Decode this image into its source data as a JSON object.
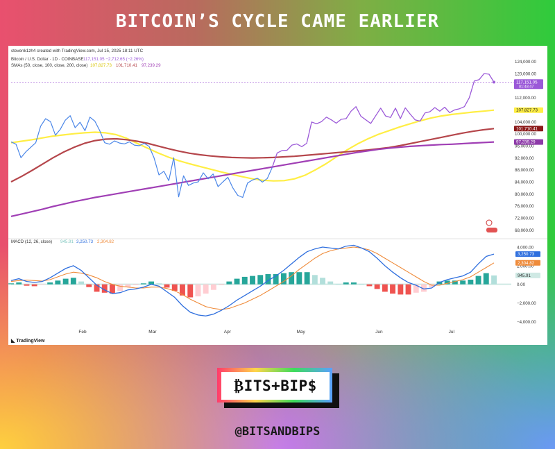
{
  "header": {
    "title": "BITCOIN’S CYCLE CAME EARLIER"
  },
  "brand": {
    "logo_text": "₿ITS+BIP$",
    "handle": "@BITSANDBIPS"
  },
  "chart_data": {
    "type": "line",
    "watermark": "stevenk1zh4 created with TradingView.com, Jul 15, 2025 18:11 UTC",
    "footer": "TradingView",
    "price_pane": {
      "legend_line1": "Bitcoin / U.S. Dollar · 1D · COINBASE",
      "legend_values1": "117,151.05  −2,712.65 (−2.26%)",
      "legend_line2": "SMAs (50, close, 100, close, 200, close)",
      "legend_values2_a": "107,827.73",
      "legend_values2_b": "101,710.41",
      "legend_values2_c": "97,239.29",
      "ylim": [
        66000,
        126000
      ],
      "yticks": [
        "124,000.00",
        "120,000.00",
        "112,000.00",
        "108,000.00",
        "104,000.00",
        "100,000.00",
        "96,000.00",
        "92,000.00",
        "88,000.00",
        "84,000.00",
        "80,000.00",
        "76,000.00",
        "72,000.00",
        "68,000.00"
      ],
      "ytick_values": [
        124000,
        120000,
        112000,
        108000,
        104000,
        100000,
        96000,
        92000,
        88000,
        84000,
        80000,
        76000,
        72000,
        68000
      ],
      "last_price_dashed": 117151.05,
      "series": [
        {
          "name": "Bitcoin / U.S. Dollar",
          "color": "#9b59d8",
          "color_early": "#4a86e8",
          "x": [
            0,
            2,
            4,
            6,
            8,
            10,
            12,
            14,
            16,
            18,
            20,
            22,
            24,
            26,
            28,
            30,
            32,
            34,
            36,
            38,
            40,
            42,
            44,
            46,
            48,
            50,
            52,
            54,
            56,
            58,
            60,
            62,
            64,
            66,
            68,
            70,
            72,
            74,
            76,
            78,
            80,
            82,
            84,
            86,
            88,
            90,
            92,
            94,
            96,
            98,
            100,
            102,
            104,
            106,
            108,
            110,
            112,
            114,
            116,
            118,
            120,
            122,
            124,
            126,
            128,
            130,
            132,
            134,
            136,
            138,
            140,
            142,
            144,
            146,
            148,
            150,
            152,
            154,
            156,
            158,
            160,
            162,
            164,
            166,
            168,
            170,
            172,
            174,
            176,
            178,
            180,
            182,
            184,
            186,
            188,
            190,
            192,
            194,
            196
          ],
          "y": [
            97300,
            96500,
            92000,
            94000,
            95500,
            97000,
            102500,
            105000,
            104000,
            99500,
            101500,
            104500,
            106000,
            102000,
            103800,
            101000,
            105500,
            104200,
            101000,
            97000,
            96500,
            97600,
            96900,
            96600,
            97300,
            96200,
            96000,
            96800,
            95800,
            92000,
            86300,
            87500,
            84400,
            92000,
            79000,
            86000,
            82800,
            83600,
            84000,
            87000,
            85000,
            86600,
            82400,
            84000,
            85500,
            82000,
            79500,
            78800,
            83600,
            84600,
            85200,
            83900,
            85100,
            88800,
            93600,
            94400,
            94500,
            96200,
            96600,
            95700,
            96800,
            103900,
            103300,
            104000,
            105500,
            104600,
            103500,
            104800,
            105000,
            107500,
            109000,
            105800,
            104600,
            103400,
            106000,
            108500,
            105900,
            105400,
            108500,
            105000,
            108600,
            106500,
            104600,
            104200,
            106900,
            107300,
            108700,
            107500,
            108800,
            107000,
            107900,
            108300,
            109000,
            112000,
            117500,
            118000,
            120000,
            119800,
            117150
          ]
        }
      ],
      "smas": [
        {
          "name": "SMA 50",
          "color": "#ffee44",
          "value": 107827.73,
          "y": [
            97000,
            97500,
            98000,
            98600,
            99200,
            99600,
            100000,
            100300,
            100500,
            100300,
            99700,
            98500,
            96800,
            95200,
            93600,
            92200,
            91000,
            90000,
            89100,
            88200,
            87300,
            86500,
            85700,
            85000,
            84500,
            84300,
            84400,
            85000,
            86200,
            88000,
            90000,
            92300,
            94600,
            96600,
            98300,
            99800,
            101000,
            102200,
            103300,
            104300,
            105200,
            105900,
            106400,
            106800,
            107200,
            107500,
            107830
          ]
        },
        {
          "name": "SMA 100",
          "color": "#b5464b",
          "value": 101710.41,
          "y": [
            84000,
            85800,
            87800,
            89900,
            92000,
            93900,
            95500,
            96800,
            97700,
            98200,
            98300,
            98000,
            97500,
            96800,
            95900,
            95000,
            94200,
            93500,
            93000,
            92600,
            92300,
            92100,
            92000,
            91950,
            92000,
            92100,
            92300,
            92500,
            92800,
            93100,
            93400,
            93700,
            94000,
            94300,
            94600,
            95000,
            95400,
            96000,
            96700,
            97400,
            98100,
            98800,
            99500,
            100200,
            100800,
            101300,
            101710
          ]
        },
        {
          "name": "SMA 200",
          "color": "#a03fb5",
          "value": 97239.29,
          "y": [
            72500,
            73300,
            74100,
            74900,
            75800,
            76600,
            77400,
            78100,
            78800,
            79400,
            80000,
            80600,
            81200,
            81800,
            82400,
            83000,
            83600,
            84200,
            84800,
            85400,
            86000,
            86600,
            87200,
            87800,
            88400,
            89000,
            89600,
            90200,
            90800,
            91400,
            92000,
            92600,
            93200,
            93800,
            94300,
            94800,
            95200,
            95500,
            95800,
            96000,
            96200,
            96400,
            96500,
            96700,
            96900,
            97050,
            97239
          ]
        }
      ],
      "value_tags": [
        {
          "text": "117,151.05",
          "sub": "01:48:47",
          "value": 117151.05,
          "color": "#9b59d8"
        },
        {
          "text": "107,827.73",
          "value": 107827.73,
          "color": "#ffee44"
        },
        {
          "text": "101,710.41",
          "value": 101710.41,
          "color": "#8b1a1a"
        },
        {
          "text": "97,239.29",
          "value": 97239.29,
          "color": "#8d3aa8"
        }
      ]
    },
    "macd_pane": {
      "legend_label": "MACD (12, 26, close)",
      "legend_values": [
        "945.91",
        "3,250.73",
        "2,304.82"
      ],
      "ylim": [
        -4500,
        4600
      ],
      "yticks": [
        "4,000.00",
        "2,000.00",
        "0.00",
        "−2,000.00",
        "−4,000.00"
      ],
      "ytick_values": [
        4000,
        2000,
        0,
        -2000,
        -4000
      ],
      "macd": [
        400,
        600,
        300,
        200,
        300,
        700,
        1200,
        1700,
        2000,
        1500,
        700,
        -100,
        -600,
        -1000,
        -900,
        -600,
        -500,
        -300,
        0,
        -200,
        -800,
        -1400,
        -2300,
        -3000,
        -3300,
        -3400,
        -3200,
        -2800,
        -2300,
        -1700,
        -1200,
        -700,
        -200,
        400,
        900,
        1500,
        2200,
        2900,
        3500,
        3800,
        4000,
        3900,
        3800,
        4100,
        4200,
        3900,
        3500,
        2800,
        2000,
        1300,
        700,
        200,
        -100,
        -500,
        -400,
        200,
        500,
        700,
        900,
        1300,
        2200,
        3000,
        3250
      ],
      "signal": [
        300,
        400,
        450,
        400,
        350,
        500,
        800,
        1100,
        1300,
        1200,
        1000,
        700,
        300,
        0,
        -200,
        -300,
        -400,
        -400,
        -300,
        -300,
        -450,
        -700,
        -1100,
        -1600,
        -2000,
        -2400,
        -2600,
        -2700,
        -2600,
        -2300,
        -2000,
        -1600,
        -1200,
        -700,
        -200,
        300,
        900,
        1600,
        2200,
        2800,
        3300,
        3600,
        3800,
        3900,
        4000,
        3900,
        3700,
        3300,
        2800,
        2300,
        1800,
        1300,
        800,
        300,
        -100,
        -100,
        100,
        300,
        500,
        800,
        1300,
        1800,
        2300
      ],
      "histogram": [
        100,
        200,
        -150,
        -200,
        -50,
        200,
        400,
        600,
        700,
        300,
        -300,
        -800,
        -900,
        -1000,
        -700,
        -300,
        -100,
        100,
        300,
        100,
        -350,
        -700,
        -1200,
        -1400,
        -1300,
        -1000,
        -600,
        -100,
        300,
        600,
        800,
        900,
        1000,
        1100,
        1100,
        1200,
        1300,
        1300,
        1300,
        1000,
        700,
        300,
        0,
        200,
        200,
        0,
        -200,
        -500,
        -800,
        -1000,
        -1100,
        -1100,
        -900,
        -800,
        -300,
        300,
        400,
        400,
        400,
        500,
        900,
        1200,
        950
      ],
      "series": [
        {
          "name": "MACD",
          "color": "#2f6fde",
          "value": "3,250.73"
        },
        {
          "name": "Signal",
          "color": "#ef8b3a",
          "value": "2,304.82"
        },
        {
          "name": "Histogram",
          "value": "945.91"
        }
      ]
    },
    "x_ticks": [
      {
        "label": "Feb",
        "frac": 0.148
      },
      {
        "label": "Mar",
        "frac": 0.293
      },
      {
        "label": "Apr",
        "frac": 0.448
      },
      {
        "label": "May",
        "frac": 0.6
      },
      {
        "label": "Jun",
        "frac": 0.762
      },
      {
        "label": "Jul",
        "frac": 0.912
      }
    ]
  }
}
